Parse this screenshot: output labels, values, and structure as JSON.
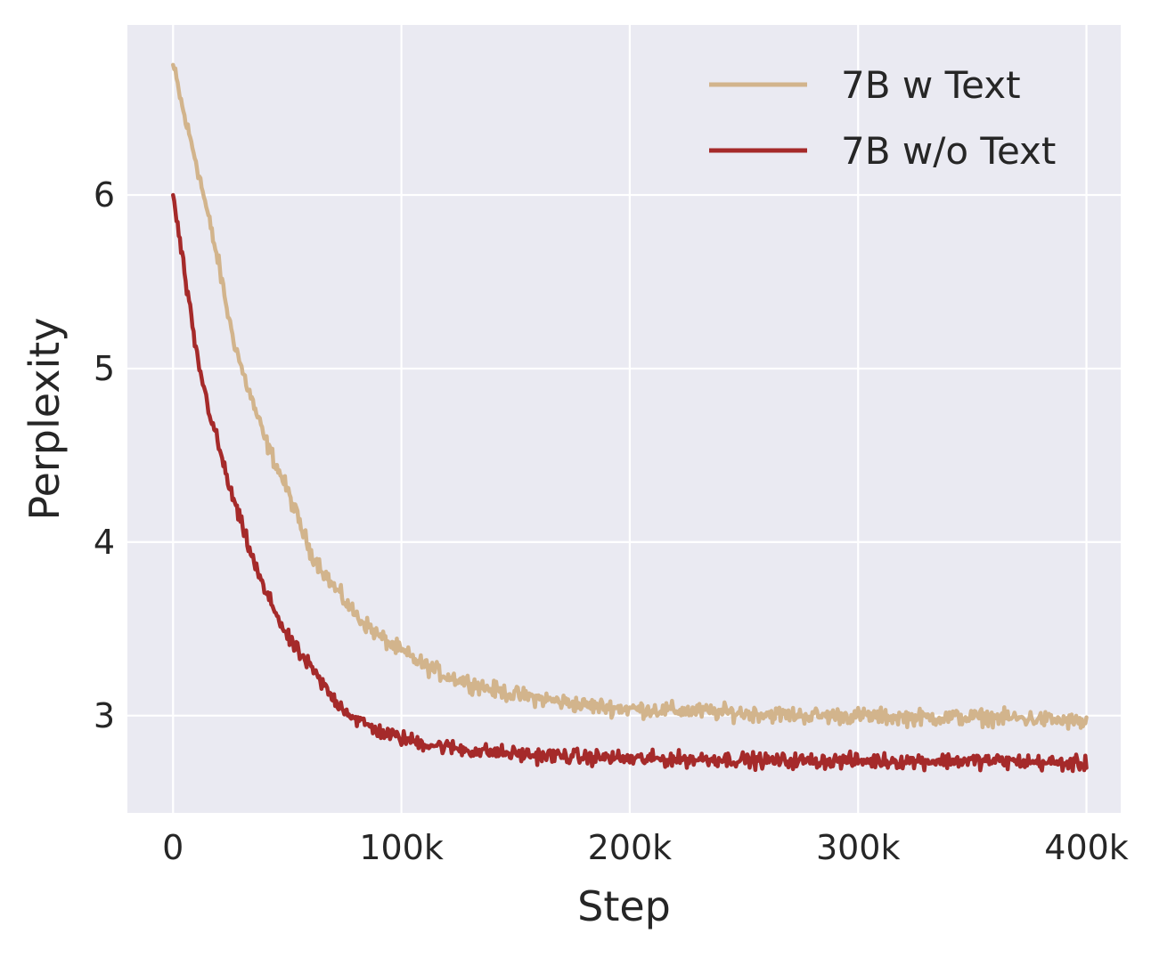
{
  "chart_data": {
    "type": "line",
    "title": "",
    "xlabel": "Step",
    "ylabel": "Perplexity",
    "xlim": [
      -20000,
      415000
    ],
    "ylim": [
      2.44,
      6.98
    ],
    "x_ticks": [
      0,
      100000,
      200000,
      300000,
      400000
    ],
    "x_tick_labels": [
      "0",
      "100k",
      "200k",
      "300k",
      "400k"
    ],
    "y_ticks": [
      3,
      4,
      5,
      6
    ],
    "y_tick_labels": [
      "3",
      "4",
      "5",
      "6"
    ],
    "grid": true,
    "legend_position": "top-right",
    "series": [
      {
        "name": "7B w Text",
        "color": "#d2b48c",
        "x": [
          0,
          5000,
          10000,
          15000,
          20000,
          25000,
          30000,
          35000,
          40000,
          45000,
          50000,
          60000,
          70000,
          80000,
          90000,
          100000,
          110000,
          120000,
          130000,
          140000,
          150000,
          160000,
          170000,
          180000,
          190000,
          200000,
          220000,
          240000,
          260000,
          280000,
          300000,
          320000,
          340000,
          360000,
          380000,
          400000
        ],
        "values": [
          6.75,
          6.45,
          6.2,
          5.9,
          5.6,
          5.25,
          5.0,
          4.8,
          4.6,
          4.45,
          4.3,
          3.95,
          3.75,
          3.58,
          3.46,
          3.37,
          3.29,
          3.23,
          3.19,
          3.15,
          3.12,
          3.1,
          3.08,
          3.06,
          3.05,
          3.04,
          3.03,
          3.02,
          3.01,
          3.0,
          3.0,
          2.99,
          2.99,
          2.99,
          2.98,
          2.96
        ]
      },
      {
        "name": "7B w/o Text",
        "color": "#a52a2a",
        "x": [
          0,
          5000,
          10000,
          15000,
          20000,
          25000,
          30000,
          35000,
          40000,
          45000,
          50000,
          60000,
          70000,
          80000,
          90000,
          100000,
          110000,
          120000,
          130000,
          140000,
          150000,
          160000,
          170000,
          180000,
          190000,
          200000,
          220000,
          240000,
          260000,
          280000,
          300000,
          320000,
          340000,
          360000,
          380000,
          400000
        ],
        "values": [
          6.0,
          5.55,
          5.1,
          4.8,
          4.55,
          4.3,
          4.1,
          3.9,
          3.72,
          3.6,
          3.45,
          3.28,
          3.1,
          2.98,
          2.91,
          2.87,
          2.84,
          2.82,
          2.8,
          2.79,
          2.78,
          2.77,
          2.77,
          2.76,
          2.76,
          2.75,
          2.75,
          2.75,
          2.74,
          2.74,
          2.74,
          2.74,
          2.74,
          2.74,
          2.73,
          2.72
        ]
      }
    ]
  }
}
